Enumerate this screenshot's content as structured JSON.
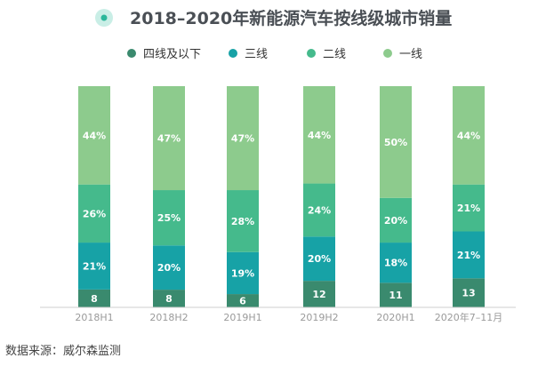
{
  "title": "2018–2020年新能源汽车按线级城市销量",
  "source": "数据来源：威尔森监测",
  "colors": {
    "title_icon_outer": "#c9eee6",
    "title_icon_inner": "#2bb79b",
    "baseline": "#cfcfcf"
  },
  "chart_data": {
    "type": "bar",
    "stacked": true,
    "normalized": true,
    "categories": [
      "2018H1",
      "2018H2",
      "2019H1",
      "2019H2",
      "2020H1",
      "2020年7–11月"
    ],
    "series": [
      {
        "name": "四线及以下",
        "color": "#3a8a6e",
        "values": [
          8,
          8,
          6,
          12,
          11,
          13
        ],
        "labels": [
          "8",
          "8",
          "6",
          "12",
          "11",
          "13"
        ]
      },
      {
        "name": "三线",
        "color": "#17a2a6",
        "values": [
          21,
          20,
          19,
          20,
          18,
          21
        ],
        "labels": [
          "21%",
          "20%",
          "19%",
          "20%",
          "18%",
          "21%"
        ]
      },
      {
        "name": "二线",
        "color": "#45ba8c",
        "values": [
          26,
          25,
          28,
          24,
          20,
          21
        ],
        "labels": [
          "26%",
          "25%",
          "28%",
          "24%",
          "20%",
          "21%"
        ]
      },
      {
        "name": "一线",
        "color": "#8dcb8d",
        "values": [
          44,
          47,
          47,
          44,
          50,
          44
        ],
        "labels": [
          "44%",
          "47%",
          "47%",
          "44%",
          "50%",
          "44%"
        ]
      }
    ],
    "ylim": [
      0,
      100
    ],
    "legend_position": "top-center",
    "grid": false
  }
}
